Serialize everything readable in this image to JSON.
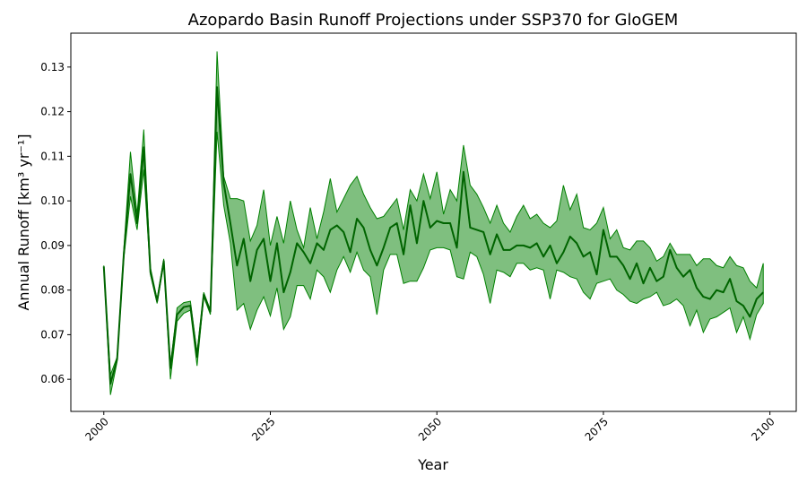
{
  "chart_data": {
    "type": "line",
    "title": "Azopardo Basin Runoff Projections under SSP370 for GloGEM",
    "x_label": "Year",
    "y_label": "Annual Runoff [km³ yr⁻¹]",
    "x": [
      2000,
      2001,
      2002,
      2003,
      2004,
      2005,
      2006,
      2007,
      2008,
      2009,
      2010,
      2011,
      2012,
      2013,
      2014,
      2015,
      2016,
      2017,
      2018,
      2019,
      2020,
      2021,
      2022,
      2023,
      2024,
      2025,
      2026,
      2027,
      2028,
      2029,
      2030,
      2031,
      2032,
      2033,
      2034,
      2035,
      2036,
      2037,
      2038,
      2039,
      2040,
      2041,
      2042,
      2043,
      2044,
      2045,
      2046,
      2047,
      2048,
      2049,
      2050,
      2051,
      2052,
      2053,
      2054,
      2055,
      2056,
      2057,
      2058,
      2059,
      2060,
      2061,
      2062,
      2063,
      2064,
      2065,
      2066,
      2067,
      2068,
      2069,
      2070,
      2071,
      2072,
      2073,
      2074,
      2075,
      2076,
      2077,
      2078,
      2079,
      2080,
      2081,
      2082,
      2083,
      2084,
      2085,
      2086,
      2087,
      2088,
      2089,
      2090,
      2091,
      2092,
      2093,
      2094,
      2095,
      2096,
      2097,
      2098,
      2099
    ],
    "series": [
      {
        "color": "#006400",
        "values": [
          0.0853,
          0.059,
          0.0645,
          0.088,
          0.106,
          0.095,
          0.112,
          0.084,
          0.0775,
          0.0865,
          0.0625,
          0.0745,
          0.0762,
          0.0765,
          0.065,
          0.079,
          0.0752,
          0.1255,
          0.104,
          0.095,
          0.0855,
          0.0915,
          0.082,
          0.089,
          0.0915,
          0.082,
          0.0905,
          0.0795,
          0.084,
          0.0905,
          0.0885,
          0.086,
          0.0905,
          0.089,
          0.0935,
          0.0945,
          0.093,
          0.0885,
          0.096,
          0.094,
          0.089,
          0.0855,
          0.0895,
          0.094,
          0.095,
          0.088,
          0.099,
          0.0905,
          0.1,
          0.094,
          0.0955,
          0.095,
          0.095,
          0.0895,
          0.1065,
          0.094,
          0.0935,
          0.093,
          0.088,
          0.0925,
          0.089,
          0.089,
          0.09,
          0.09,
          0.0895,
          0.0905,
          0.0875,
          0.09,
          0.086,
          0.0885,
          0.092,
          0.0905,
          0.0875,
          0.0885,
          0.0835,
          0.0935,
          0.0875,
          0.0875,
          0.0855,
          0.0825,
          0.086,
          0.0815,
          0.085,
          0.082,
          0.083,
          0.089,
          0.085,
          0.083,
          0.0845,
          0.0805,
          0.0785,
          0.078,
          0.08,
          0.0795,
          0.0825,
          0.0775,
          0.0765,
          0.074,
          0.078,
          0.0795
        ]
      }
    ],
    "band": {
      "color": "#008000",
      "upper": [
        0.0855,
        0.061,
        0.065,
        0.089,
        0.111,
        0.097,
        0.116,
        0.085,
        0.078,
        0.087,
        0.063,
        0.076,
        0.0772,
        0.0775,
        0.066,
        0.0795,
        0.0755,
        0.1335,
        0.1055,
        0.1005,
        0.1005,
        0.1,
        0.091,
        0.0945,
        0.1025,
        0.09,
        0.0965,
        0.0905,
        0.1,
        0.0935,
        0.0895,
        0.0985,
        0.0915,
        0.0975,
        0.105,
        0.0975,
        0.1005,
        0.1035,
        0.1055,
        0.1015,
        0.0985,
        0.096,
        0.0965,
        0.0985,
        0.1005,
        0.0935,
        0.1025,
        0.1,
        0.106,
        0.1005,
        0.1065,
        0.097,
        0.1025,
        0.1,
        0.1125,
        0.1035,
        0.1015,
        0.0985,
        0.095,
        0.099,
        0.095,
        0.093,
        0.0965,
        0.099,
        0.096,
        0.097,
        0.095,
        0.094,
        0.0955,
        0.1035,
        0.098,
        0.1015,
        0.094,
        0.0935,
        0.095,
        0.0985,
        0.0915,
        0.0935,
        0.0895,
        0.089,
        0.091,
        0.091,
        0.0895,
        0.0865,
        0.0875,
        0.0905,
        0.088,
        0.088,
        0.088,
        0.0855,
        0.087,
        0.087,
        0.0855,
        0.085,
        0.0875,
        0.0855,
        0.085,
        0.082,
        0.0805,
        0.086
      ],
      "lower": [
        0.085,
        0.0565,
        0.064,
        0.087,
        0.101,
        0.0935,
        0.107,
        0.0835,
        0.077,
        0.086,
        0.06,
        0.073,
        0.0748,
        0.0755,
        0.063,
        0.0785,
        0.0745,
        0.1155,
        0.099,
        0.0905,
        0.0755,
        0.077,
        0.0712,
        0.0755,
        0.0785,
        0.0742,
        0.0805,
        0.0712,
        0.074,
        0.081,
        0.081,
        0.078,
        0.0845,
        0.083,
        0.0795,
        0.0845,
        0.0875,
        0.084,
        0.0885,
        0.0845,
        0.083,
        0.0745,
        0.0845,
        0.088,
        0.088,
        0.0815,
        0.082,
        0.082,
        0.085,
        0.089,
        0.0895,
        0.0895,
        0.089,
        0.083,
        0.0825,
        0.0885,
        0.0875,
        0.0835,
        0.077,
        0.0845,
        0.084,
        0.083,
        0.086,
        0.086,
        0.0845,
        0.085,
        0.0845,
        0.078,
        0.0845,
        0.084,
        0.083,
        0.0825,
        0.0795,
        0.078,
        0.0815,
        0.082,
        0.0825,
        0.08,
        0.079,
        0.0775,
        0.077,
        0.078,
        0.0785,
        0.0795,
        0.0765,
        0.077,
        0.078,
        0.0765,
        0.072,
        0.0755,
        0.0705,
        0.0735,
        0.074,
        0.075,
        0.076,
        0.0705,
        0.074,
        0.069,
        0.0745,
        0.077
      ]
    },
    "xlim": [
      1995.05,
      2103.95
    ],
    "xticks": [
      2000,
      2025,
      2050,
      2075,
      2100
    ],
    "ylim": [
      0.0528,
      0.1376
    ],
    "yticks": [
      0.06,
      0.07,
      0.08,
      0.09,
      {
        "value": 0.1,
        "label": "0.10"
      },
      0.11,
      0.12,
      0.13
    ],
    "grid": false
  }
}
